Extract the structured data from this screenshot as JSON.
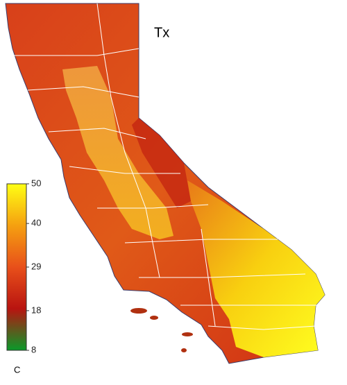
{
  "map": {
    "title": "Tx",
    "colorbar": {
      "ticks": [
        50,
        40,
        29,
        18,
        8
      ],
      "lim": [
        8,
        50
      ],
      "unit": "C",
      "colors": [
        "#0a9a2a",
        "#b81410",
        "#e8501a",
        "#f5a010",
        "#ffff14"
      ]
    }
  }
}
